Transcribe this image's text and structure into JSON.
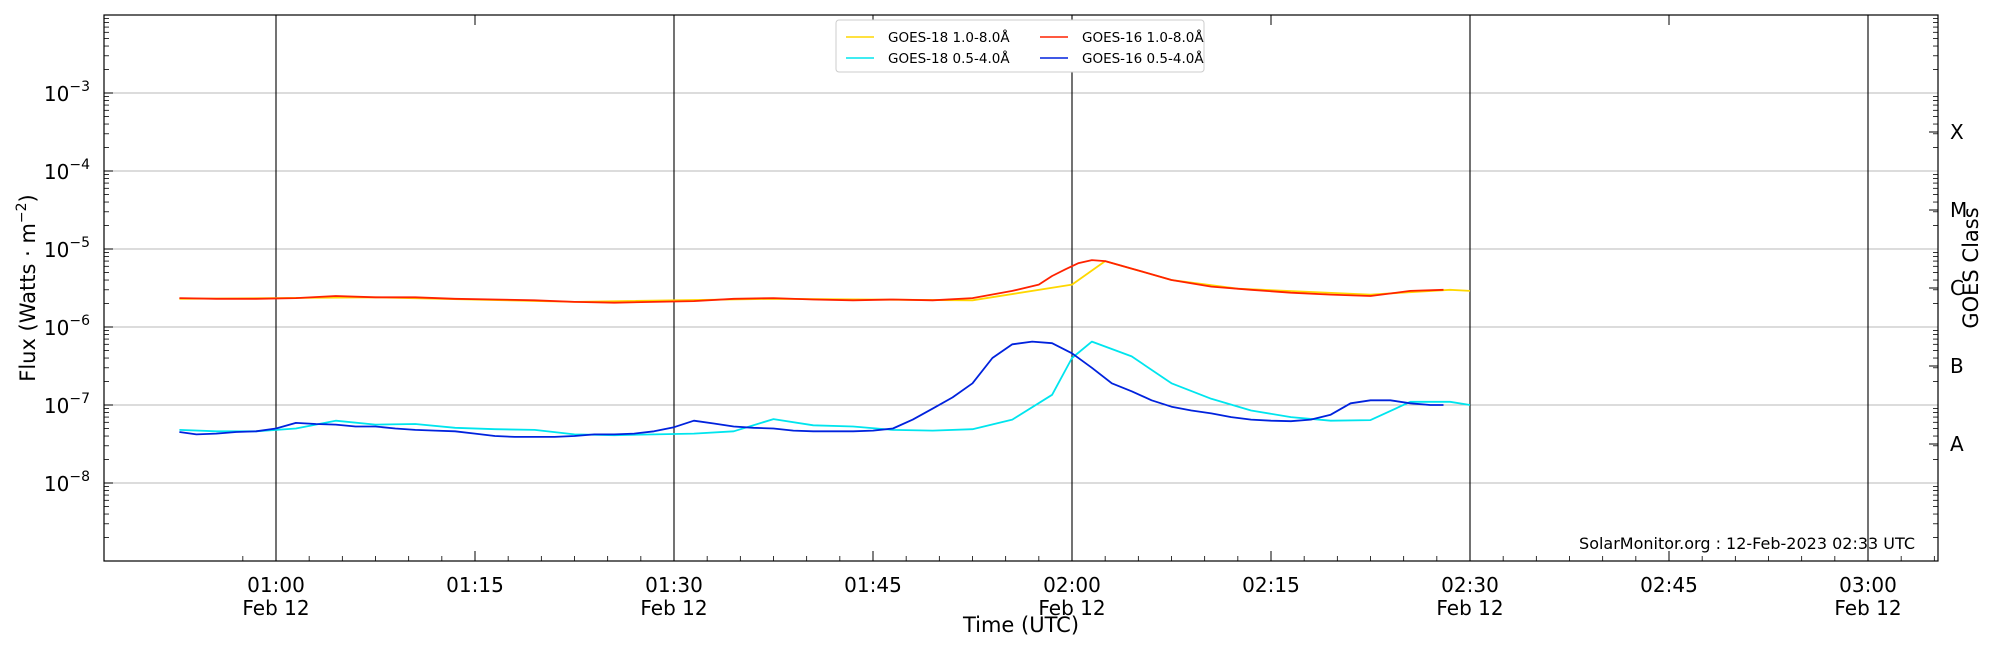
{
  "chart_data": {
    "type": "line",
    "xlabel": "Time (UTC)",
    "ylabel_main": "Flux (Watts · m",
    "ylabel_exp": "−2",
    "ylabel_close": ")",
    "ylabel_right": "GOES Class",
    "credit": "SolarMonitor.org : 12-Feb-2023 02:33 UTC",
    "x_range_minutes": [
      0.22,
      70.14
    ],
    "y_log_range": [
      -9,
      -2
    ],
    "y_scale": "log",
    "grid": "horizontal-at-decades",
    "legend_placement": "top-center",
    "x_ticks": [
      {
        "t": 7.5,
        "label": "01:00",
        "sublabel": "Feb 12"
      },
      {
        "t": 22.5,
        "label": "01:15",
        "sublabel": ""
      },
      {
        "t": 37.5,
        "label": "01:30",
        "sublabel": "Feb 12"
      },
      {
        "t": 52.5,
        "label": "01:45",
        "sublabel": ""
      },
      {
        "t": 67.5,
        "label": "02:00",
        "sublabel": "Feb 12"
      },
      {
        "t": 82.5,
        "label": "02:15",
        "sublabel": ""
      },
      {
        "t": 97.5,
        "label": "02:30",
        "sublabel": "Feb 12"
      },
      {
        "t": 112.5,
        "label": "02:45",
        "sublabel": ""
      },
      {
        "t": 127.5,
        "label": "03:00",
        "sublabel": "Feb 12"
      }
    ],
    "y_ticks": [
      {
        "exp": -8,
        "base": "10",
        "sup": "−8"
      },
      {
        "exp": -7,
        "base": "10",
        "sup": "−7"
      },
      {
        "exp": -6,
        "base": "10",
        "sup": "−6"
      },
      {
        "exp": -5,
        "base": "10",
        "sup": "−5"
      },
      {
        "exp": -4,
        "base": "10",
        "sup": "−4"
      },
      {
        "exp": -3,
        "base": "10",
        "sup": "−3"
      }
    ],
    "class_labels": [
      {
        "label": "A",
        "exp": -7.5
      },
      {
        "label": "B",
        "exp": -6.5
      },
      {
        "label": "C",
        "exp": -5.5
      },
      {
        "label": "M",
        "exp": -4.5
      },
      {
        "label": "X",
        "exp": -3.5
      }
    ],
    "vertical_lines_t": [
      7.5,
      37.5,
      67.5,
      97.5,
      127.5
    ],
    "series": [
      {
        "name": "GOES-18 1.0-8.0Å",
        "color": "#ffd700",
        "x": [
          0.22,
          15,
          30,
          45,
          60,
          67.5,
          70,
          75,
          80,
          90,
          96,
          97.5
        ],
        "y": [
          2.3e-06,
          2.4e-06,
          2.1e-06,
          2.3e-06,
          2.2e-06,
          3.5e-06,
          7e-06,
          4e-06,
          3.1e-06,
          2.6e-06,
          3e-06,
          2.9e-06
        ]
      },
      {
        "name": "GOES-18 0.5-4.0Å",
        "color": "#00e5ee",
        "x": [
          0.22,
          3,
          6,
          9,
          12,
          15,
          18,
          21,
          24,
          27,
          30,
          33,
          36,
          39,
          42,
          45,
          48,
          51,
          54,
          57,
          60,
          63,
          66,
          67.5,
          69,
          72,
          75,
          78,
          81,
          84,
          87,
          90,
          93,
          96,
          97.5
        ],
        "y": [
          4.8e-08,
          4.6e-08,
          4.6e-08,
          5e-08,
          6.3e-08,
          5.6e-08,
          5.7e-08,
          5.1e-08,
          4.9e-08,
          4.8e-08,
          4.2e-08,
          4.1e-08,
          4.2e-08,
          4.3e-08,
          4.6e-08,
          6.6e-08,
          5.5e-08,
          5.3e-08,
          4.8e-08,
          4.7e-08,
          4.9e-08,
          6.5e-08,
          1.35e-07,
          4e-07,
          6.5e-07,
          4.2e-07,
          1.9e-07,
          1.2e-07,
          8.5e-08,
          7e-08,
          6.3e-08,
          6.4e-08,
          1.1e-07,
          1.1e-07,
          1e-07
        ]
      },
      {
        "name": "GOES-16 1.0-8.0Å",
        "color": "#ff2200",
        "x": [
          0.22,
          3,
          6,
          9,
          12,
          15,
          18,
          21,
          24,
          27,
          30,
          33,
          36,
          39,
          42,
          45,
          48,
          51,
          54,
          57,
          60,
          63,
          65,
          66,
          67,
          68,
          69,
          70,
          72,
          75,
          78,
          81,
          84,
          87,
          90,
          93,
          95.5
        ],
        "y": [
          2.35e-06,
          2.3e-06,
          2.3e-06,
          2.35e-06,
          2.5e-06,
          2.4e-06,
          2.4e-06,
          2.3e-06,
          2.25e-06,
          2.2e-06,
          2.1e-06,
          2.05e-06,
          2.1e-06,
          2.15e-06,
          2.3e-06,
          2.35e-06,
          2.25e-06,
          2.2e-06,
          2.25e-06,
          2.2e-06,
          2.35e-06,
          2.9e-06,
          3.5e-06,
          4.5e-06,
          5.5e-06,
          6.6e-06,
          7.2e-06,
          7e-06,
          5.6e-06,
          4e-06,
          3.3e-06,
          3e-06,
          2.75e-06,
          2.6e-06,
          2.5e-06,
          2.9e-06,
          3e-06
        ]
      },
      {
        "name": "GOES-16 0.5-4.0Å",
        "color": "#0022dd",
        "x": [
          0.22,
          1.5,
          3,
          4.5,
          6,
          7.5,
          9,
          10.5,
          12,
          13.5,
          15,
          16.5,
          18,
          19.5,
          21,
          22.5,
          24,
          25.5,
          27,
          28.5,
          30,
          31.5,
          33,
          34.5,
          36,
          37.5,
          39,
          40.5,
          42,
          43.5,
          45,
          46.5,
          48,
          49.5,
          51,
          52.5,
          54,
          55.5,
          57,
          58.5,
          60,
          61.5,
          63,
          64.5,
          66,
          67.5,
          69,
          70.5,
          72,
          73.5,
          75,
          76.5,
          78,
          79.5,
          81,
          82.5,
          84,
          85.5,
          87,
          88.5,
          90,
          91.5,
          93,
          94.5,
          95.5
        ],
        "y": [
          4.5e-08,
          4.2e-08,
          4.3e-08,
          4.5e-08,
          4.6e-08,
          5e-08,
          5.9e-08,
          5.7e-08,
          5.6e-08,
          5.3e-08,
          5.3e-08,
          5e-08,
          4.8e-08,
          4.7e-08,
          4.6e-08,
          4.3e-08,
          4e-08,
          3.9e-08,
          3.9e-08,
          3.9e-08,
          4e-08,
          4.2e-08,
          4.2e-08,
          4.3e-08,
          4.6e-08,
          5.2e-08,
          6.3e-08,
          5.8e-08,
          5.3e-08,
          5.1e-08,
          5e-08,
          4.7e-08,
          4.6e-08,
          4.6e-08,
          4.6e-08,
          4.7e-08,
          5e-08,
          6.5e-08,
          9e-08,
          1.25e-07,
          1.9e-07,
          4e-07,
          6e-07,
          6.5e-07,
          6.2e-07,
          4.6e-07,
          3e-07,
          1.9e-07,
          1.5e-07,
          1.15e-07,
          9.5e-08,
          8.5e-08,
          7.8e-08,
          7e-08,
          6.5e-08,
          6.3e-08,
          6.2e-08,
          6.5e-08,
          7.5e-08,
          1.05e-07,
          1.15e-07,
          1.15e-07,
          1.05e-07,
          1e-07,
          1e-07
        ]
      }
    ]
  }
}
